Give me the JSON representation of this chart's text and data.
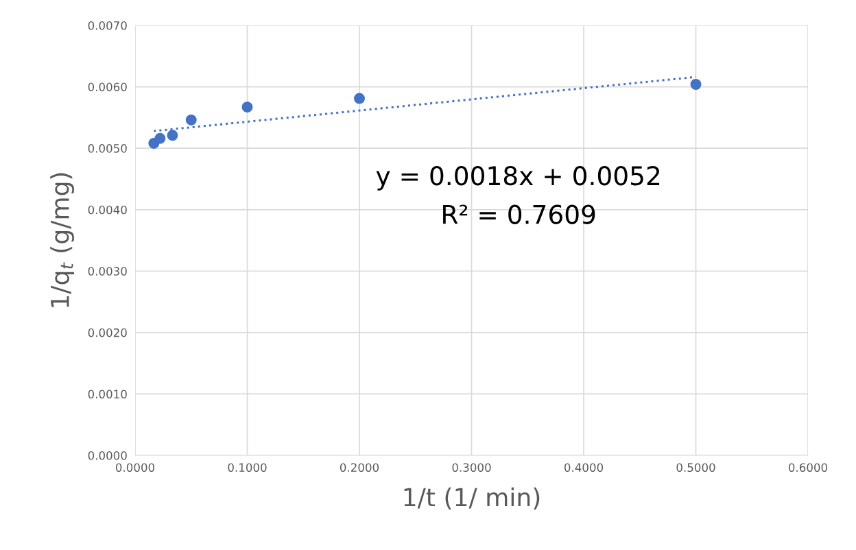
{
  "chart_data": {
    "type": "scatter",
    "xlabel": "1/t (1/ min)",
    "ylabel": "1/q$_{t}$ (g/mg)",
    "series": [
      {
        "color": "#4472c4",
        "marker": "circle",
        "x": [
          0.0167,
          0.0222,
          0.0333,
          0.05,
          0.1,
          0.2,
          0.5
        ],
        "values": [
          0.00508,
          0.00516,
          0.00521,
          0.00546,
          0.00567,
          0.00581,
          0.00604
        ]
      },
      {
        "type": "line",
        "color": "#4472c4",
        "line_style": "dotted",
        "x": [
          0.0167,
          0.5
        ],
        "values": [
          0.00528,
          0.00616
        ]
      }
    ],
    "annotations": [
      "y = 0.0018x + 0.0052",
      "R² = 0.7609"
    ],
    "xlim": [
      0,
      0.6
    ],
    "ylim": [
      0,
      0.007
    ],
    "xticks": [
      {
        "value": 0,
        "label": "0.0000"
      },
      {
        "value": 0.1,
        "label": "0.1000"
      },
      {
        "value": 0.2,
        "label": "0.2000"
      },
      {
        "value": 0.3,
        "label": "0.3000"
      },
      {
        "value": 0.4,
        "label": "0.4000"
      },
      {
        "value": 0.5,
        "label": "0.5000"
      },
      {
        "value": 0.6,
        "label": "0.6000"
      }
    ],
    "yticks": [
      {
        "value": 0,
        "label": "0.0000"
      },
      {
        "value": 0.001,
        "label": "0.0010"
      },
      {
        "value": 0.002,
        "label": "0.0020"
      },
      {
        "value": 0.003,
        "label": "0.0030"
      },
      {
        "value": 0.004,
        "label": "0.0040"
      },
      {
        "value": 0.005,
        "label": "0.0050"
      },
      {
        "value": 0.006,
        "label": "0.0060"
      },
      {
        "value": 0.007,
        "label": "0.0070"
      }
    ],
    "grid": true,
    "legend": false
  }
}
